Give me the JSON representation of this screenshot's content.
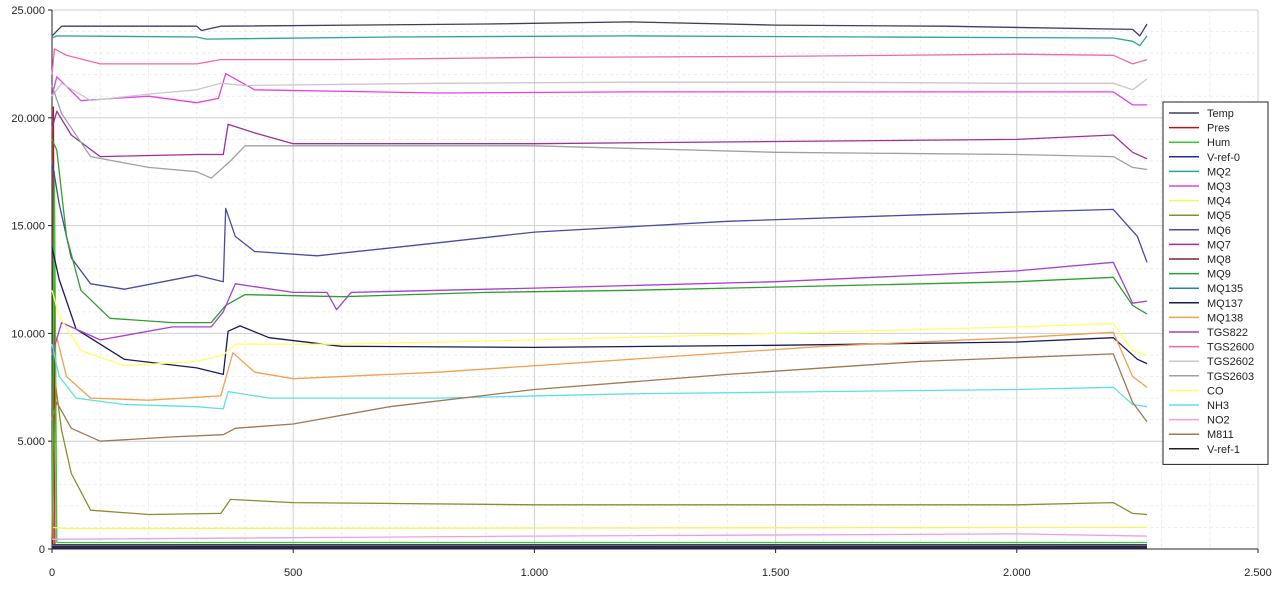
{
  "chart_data": {
    "type": "line",
    "title": "",
    "xlabel": "",
    "ylabel": "",
    "xlim": [
      0,
      2500
    ],
    "ylim": [
      0,
      25000
    ],
    "grid": true,
    "legend_position": "right",
    "x_ticks": [
      0,
      500,
      1000,
      1500,
      2000,
      2500
    ],
    "x_tick_labels": [
      "0",
      "500",
      "1.000",
      "1.500",
      "2.000",
      "2.500"
    ],
    "y_ticks": [
      0,
      5000,
      10000,
      15000,
      20000,
      25000
    ],
    "y_tick_labels": [
      "0",
      "5.000",
      "10.000",
      "15.000",
      "20.000",
      "25.000"
    ],
    "series": [
      {
        "name": "Temp",
        "color": "#3d3d66",
        "points": [
          [
            0,
            23800
          ],
          [
            20,
            24250
          ],
          [
            300,
            24250
          ],
          [
            310,
            24050
          ],
          [
            350,
            24250
          ],
          [
            900,
            24350
          ],
          [
            1200,
            24450
          ],
          [
            1500,
            24300
          ],
          [
            1850,
            24250
          ],
          [
            2240,
            24100
          ],
          [
            2255,
            23800
          ],
          [
            2270,
            24350
          ]
        ]
      },
      {
        "name": "Pres",
        "color": "#b01818",
        "points": [
          [
            0,
            200
          ],
          [
            2,
            200
          ],
          [
            3,
            20500
          ],
          [
            6,
            200
          ],
          [
            2270,
            200
          ]
        ]
      },
      {
        "name": "Hum",
        "color": "#33cc33",
        "points": [
          [
            0,
            500
          ],
          [
            5,
            17500
          ],
          [
            10,
            300
          ],
          [
            2270,
            300
          ]
        ]
      },
      {
        "name": "V-ref-0",
        "color": "#2a2a99",
        "points": [
          [
            0,
            50
          ],
          [
            2270,
            50
          ]
        ]
      },
      {
        "name": "MQ2",
        "color": "#26a69a",
        "points": [
          [
            0,
            23700
          ],
          [
            10,
            23800
          ],
          [
            300,
            23750
          ],
          [
            320,
            23650
          ],
          [
            700,
            23750
          ],
          [
            1200,
            23800
          ],
          [
            1700,
            23750
          ],
          [
            2200,
            23700
          ],
          [
            2240,
            23550
          ],
          [
            2255,
            23350
          ],
          [
            2270,
            23800
          ]
        ]
      },
      {
        "name": "MQ3",
        "color": "#e83fe8",
        "points": [
          [
            0,
            21000
          ],
          [
            10,
            21900
          ],
          [
            60,
            20800
          ],
          [
            200,
            21000
          ],
          [
            300,
            20700
          ],
          [
            345,
            20900
          ],
          [
            360,
            22050
          ],
          [
            420,
            21300
          ],
          [
            800,
            21150
          ],
          [
            1200,
            21200
          ],
          [
            1600,
            21200
          ],
          [
            2200,
            21200
          ],
          [
            2240,
            20600
          ],
          [
            2270,
            20600
          ]
        ]
      },
      {
        "name": "MQ4",
        "color": "#f5f560",
        "points": [
          [
            0,
            1000
          ],
          [
            30,
            950
          ],
          [
            2270,
            1000
          ]
        ]
      },
      {
        "name": "MQ5",
        "color": "#8c8c2e",
        "points": [
          [
            0,
            500
          ],
          [
            8,
            7500
          ],
          [
            20,
            5500
          ],
          [
            40,
            3500
          ],
          [
            80,
            1800
          ],
          [
            200,
            1600
          ],
          [
            350,
            1650
          ],
          [
            370,
            2300
          ],
          [
            500,
            2150
          ],
          [
            1000,
            2050
          ],
          [
            1500,
            2050
          ],
          [
            2000,
            2050
          ],
          [
            2200,
            2150
          ],
          [
            2240,
            1650
          ],
          [
            2270,
            1600
          ]
        ]
      },
      {
        "name": "MQ6",
        "color": "#4a4a9e",
        "points": [
          [
            0,
            18000
          ],
          [
            15,
            16000
          ],
          [
            40,
            13500
          ],
          [
            80,
            12300
          ],
          [
            150,
            12050
          ],
          [
            300,
            12700
          ],
          [
            355,
            12400
          ],
          [
            360,
            15800
          ],
          [
            380,
            14500
          ],
          [
            420,
            13800
          ],
          [
            550,
            13600
          ],
          [
            800,
            14200
          ],
          [
            1000,
            14700
          ],
          [
            1400,
            15200
          ],
          [
            1800,
            15500
          ],
          [
            2200,
            15750
          ],
          [
            2250,
            14500
          ],
          [
            2270,
            13300
          ]
        ]
      },
      {
        "name": "MQ7",
        "color": "#9b309b",
        "points": [
          [
            0,
            19500
          ],
          [
            10,
            20300
          ],
          [
            40,
            19200
          ],
          [
            100,
            18200
          ],
          [
            300,
            18300
          ],
          [
            355,
            18300
          ],
          [
            365,
            19700
          ],
          [
            420,
            19300
          ],
          [
            500,
            18800
          ],
          [
            1000,
            18800
          ],
          [
            1500,
            18900
          ],
          [
            2000,
            19000
          ],
          [
            2200,
            19200
          ],
          [
            2240,
            18400
          ],
          [
            2270,
            18100
          ]
        ]
      },
      {
        "name": "MQ8",
        "color": "#7a2828",
        "points": [
          [
            0,
            200
          ],
          [
            2270,
            200
          ]
        ]
      },
      {
        "name": "MQ9",
        "color": "#2e9e2e",
        "points": [
          [
            0,
            19000
          ],
          [
            10,
            18500
          ],
          [
            30,
            14500
          ],
          [
            60,
            12000
          ],
          [
            120,
            10700
          ],
          [
            250,
            10500
          ],
          [
            330,
            10500
          ],
          [
            360,
            11300
          ],
          [
            400,
            11800
          ],
          [
            600,
            11700
          ],
          [
            900,
            11900
          ],
          [
            1200,
            12000
          ],
          [
            1600,
            12200
          ],
          [
            2000,
            12400
          ],
          [
            2200,
            12600
          ],
          [
            2240,
            11300
          ],
          [
            2270,
            10900
          ]
        ]
      },
      {
        "name": "MQ135",
        "color": "#2a7fb0",
        "points": [
          [
            0,
            150
          ],
          [
            2270,
            150
          ]
        ]
      },
      {
        "name": "MQ137",
        "color": "#1a1a55",
        "points": [
          [
            0,
            14000
          ],
          [
            15,
            12500
          ],
          [
            50,
            10200
          ],
          [
            150,
            8800
          ],
          [
            300,
            8400
          ],
          [
            355,
            8100
          ],
          [
            365,
            10100
          ],
          [
            390,
            10350
          ],
          [
            450,
            9800
          ],
          [
            600,
            9400
          ],
          [
            1000,
            9350
          ],
          [
            1500,
            9450
          ],
          [
            2000,
            9600
          ],
          [
            2200,
            9800
          ],
          [
            2250,
            8800
          ],
          [
            2270,
            8600
          ]
        ]
      },
      {
        "name": "MQ138",
        "color": "#f0a050",
        "points": [
          [
            0,
            9000
          ],
          [
            10,
            9800
          ],
          [
            30,
            8000
          ],
          [
            80,
            7000
          ],
          [
            200,
            6900
          ],
          [
            350,
            7100
          ],
          [
            375,
            9100
          ],
          [
            420,
            8200
          ],
          [
            500,
            7900
          ],
          [
            800,
            8200
          ],
          [
            1200,
            8800
          ],
          [
            1600,
            9400
          ],
          [
            2000,
            9800
          ],
          [
            2200,
            10050
          ],
          [
            2240,
            8000
          ],
          [
            2270,
            7500
          ]
        ]
      },
      {
        "name": "TGS822",
        "color": "#a440d0",
        "points": [
          [
            0,
            9000
          ],
          [
            20,
            10500
          ],
          [
            100,
            9700
          ],
          [
            250,
            10300
          ],
          [
            330,
            10300
          ],
          [
            355,
            11000
          ],
          [
            380,
            12300
          ],
          [
            500,
            11900
          ],
          [
            570,
            11900
          ],
          [
            590,
            11100
          ],
          [
            620,
            11900
          ],
          [
            1000,
            12100
          ],
          [
            1500,
            12400
          ],
          [
            2000,
            12900
          ],
          [
            2200,
            13300
          ],
          [
            2240,
            11400
          ],
          [
            2270,
            11500
          ]
        ]
      },
      {
        "name": "TGS2600",
        "color": "#ee6aa7",
        "points": [
          [
            0,
            22000
          ],
          [
            5,
            23200
          ],
          [
            30,
            22900
          ],
          [
            100,
            22500
          ],
          [
            300,
            22500
          ],
          [
            350,
            22700
          ],
          [
            600,
            22700
          ],
          [
            1000,
            22800
          ],
          [
            1500,
            22850
          ],
          [
            2000,
            22950
          ],
          [
            2200,
            22900
          ],
          [
            2240,
            22500
          ],
          [
            2270,
            22700
          ]
        ]
      },
      {
        "name": "TGS2602",
        "color": "#c8c8c8",
        "points": [
          [
            0,
            21000
          ],
          [
            20,
            21600
          ],
          [
            80,
            20800
          ],
          [
            200,
            21100
          ],
          [
            300,
            21300
          ],
          [
            350,
            21600
          ],
          [
            400,
            21500
          ],
          [
            800,
            21600
          ],
          [
            1200,
            21650
          ],
          [
            1600,
            21650
          ],
          [
            2000,
            21600
          ],
          [
            2200,
            21600
          ],
          [
            2240,
            21300
          ],
          [
            2270,
            21800
          ]
        ]
      },
      {
        "name": "TGS2603",
        "color": "#a0a0a0",
        "points": [
          [
            0,
            21500
          ],
          [
            20,
            20200
          ],
          [
            80,
            18200
          ],
          [
            200,
            17700
          ],
          [
            300,
            17500
          ],
          [
            330,
            17200
          ],
          [
            370,
            18000
          ],
          [
            400,
            18700
          ],
          [
            600,
            18700
          ],
          [
            1000,
            18700
          ],
          [
            1500,
            18400
          ],
          [
            2000,
            18300
          ],
          [
            2200,
            18200
          ],
          [
            2240,
            17700
          ],
          [
            2270,
            17600
          ]
        ]
      },
      {
        "name": "CO",
        "color": "#ffff66",
        "points": [
          [
            0,
            12000
          ],
          [
            15,
            10800
          ],
          [
            60,
            9200
          ],
          [
            150,
            8500
          ],
          [
            300,
            8700
          ],
          [
            355,
            9000
          ],
          [
            380,
            9500
          ],
          [
            600,
            9500
          ],
          [
            1000,
            9700
          ],
          [
            1500,
            10000
          ],
          [
            2000,
            10300
          ],
          [
            2200,
            10450
          ],
          [
            2240,
            9200
          ],
          [
            2270,
            9000
          ]
        ]
      },
      {
        "name": "NH3",
        "color": "#5ce0e8",
        "points": [
          [
            0,
            9500
          ],
          [
            15,
            8000
          ],
          [
            50,
            7000
          ],
          [
            150,
            6700
          ],
          [
            300,
            6600
          ],
          [
            355,
            6500
          ],
          [
            365,
            7300
          ],
          [
            450,
            7000
          ],
          [
            800,
            7000
          ],
          [
            1200,
            7200
          ],
          [
            1600,
            7300
          ],
          [
            2000,
            7400
          ],
          [
            2200,
            7500
          ],
          [
            2240,
            6700
          ],
          [
            2270,
            6600
          ]
        ]
      },
      {
        "name": "NO2",
        "color": "#e8a0e8",
        "points": [
          [
            0,
            450
          ],
          [
            1000,
            600
          ],
          [
            2000,
            700
          ],
          [
            2270,
            600
          ]
        ]
      },
      {
        "name": "M811",
        "color": "#a07850",
        "points": [
          [
            0,
            6000
          ],
          [
            10,
            6800
          ],
          [
            40,
            5600
          ],
          [
            100,
            5000
          ],
          [
            250,
            5200
          ],
          [
            355,
            5300
          ],
          [
            380,
            5600
          ],
          [
            500,
            5800
          ],
          [
            700,
            6600
          ],
          [
            1000,
            7400
          ],
          [
            1400,
            8100
          ],
          [
            1800,
            8700
          ],
          [
            2200,
            9050
          ],
          [
            2240,
            6800
          ],
          [
            2270,
            5900
          ]
        ]
      },
      {
        "name": "V-ref-1",
        "color": "#202020",
        "points": [
          [
            0,
            100
          ],
          [
            2270,
            100
          ]
        ]
      }
    ]
  }
}
